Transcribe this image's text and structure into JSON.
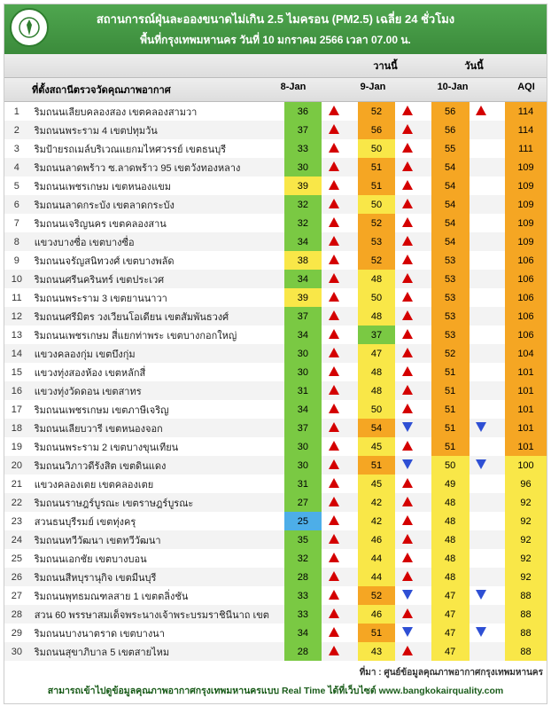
{
  "header": {
    "title1": "สถานการณ์ฝุ่นละอองขนาดไม่เกิน 2.5 ไมครอน (PM2.5) เฉลี่ย 24 ชั่วโมง",
    "title2": "พื้นที่กรุงเทพมหานคร วันที่ 10 มกราคม 2566 เวลา 07.00 น."
  },
  "columns": {
    "station": "ที่ตั้งสถานีตรวจวัดคุณภาพอากาศ",
    "yesterday_label": "วานนี้",
    "today_label": "วันนี้",
    "d1": "8-Jan",
    "d2": "9-Jan",
    "d3": "10-Jan",
    "aqi": "AQI"
  },
  "colors": {
    "green": "#7ac943",
    "yellow": "#f9e748",
    "orange": "#f5a623",
    "orange2": "#f5a623",
    "blue": "#4daee8"
  },
  "rows": [
    {
      "n": 1,
      "station": "ริมถนนเลียบคลองสอง เขตคลองสามวา",
      "v1": 36,
      "c1": "green",
      "a1": "up",
      "v2": 52,
      "c2": "orange",
      "a2": "up",
      "v3": 56,
      "c3": "orange",
      "a3": "up",
      "aqi": 114,
      "ac": "orange"
    },
    {
      "n": 2,
      "station": "ริมถนนพระราม 4 เขตปทุมวัน",
      "v1": 37,
      "c1": "green",
      "a1": "up",
      "v2": 56,
      "c2": "orange",
      "a2": "up",
      "v3": 56,
      "c3": "orange",
      "a3": "",
      "aqi": 114,
      "ac": "orange"
    },
    {
      "n": 3,
      "station": "ริมป้ายรถเมล์บริเวณแยกมไหศวรรย์ เขตธนบุรี",
      "v1": 33,
      "c1": "green",
      "a1": "up",
      "v2": 50,
      "c2": "yellow",
      "a2": "up",
      "v3": 55,
      "c3": "orange",
      "a3": "",
      "aqi": 111,
      "ac": "orange"
    },
    {
      "n": 4,
      "station": "ริมถนนลาดพร้าว ซ.ลาดพร้าว 95 เขตวังทองหลาง",
      "v1": 30,
      "c1": "green",
      "a1": "up",
      "v2": 51,
      "c2": "orange",
      "a2": "up",
      "v3": 54,
      "c3": "orange",
      "a3": "",
      "aqi": 109,
      "ac": "orange"
    },
    {
      "n": 5,
      "station": "ริมถนนเพชรเกษม เขตหนองแขม",
      "v1": 39,
      "c1": "yellow",
      "a1": "up",
      "v2": 51,
      "c2": "orange",
      "a2": "up",
      "v3": 54,
      "c3": "orange",
      "a3": "",
      "aqi": 109,
      "ac": "orange"
    },
    {
      "n": 6,
      "station": "ริมถนนลาดกระบัง เขตลาดกระบัง",
      "v1": 32,
      "c1": "green",
      "a1": "up",
      "v2": 50,
      "c2": "yellow",
      "a2": "up",
      "v3": 54,
      "c3": "orange",
      "a3": "",
      "aqi": 109,
      "ac": "orange"
    },
    {
      "n": 7,
      "station": "ริมถนนเจริญนคร เขตคลองสาน",
      "v1": 32,
      "c1": "green",
      "a1": "up",
      "v2": 52,
      "c2": "orange",
      "a2": "up",
      "v3": 54,
      "c3": "orange",
      "a3": "",
      "aqi": 109,
      "ac": "orange"
    },
    {
      "n": 8,
      "station": "แขวงบางซื่อ เขตบางซื่อ",
      "v1": 34,
      "c1": "green",
      "a1": "up",
      "v2": 53,
      "c2": "orange",
      "a2": "up",
      "v3": 54,
      "c3": "orange",
      "a3": "",
      "aqi": 109,
      "ac": "orange"
    },
    {
      "n": 9,
      "station": "ริมถนนจรัญสนิทวงศ์ เขตบางพลัด",
      "v1": 38,
      "c1": "yellow",
      "a1": "up",
      "v2": 52,
      "c2": "orange",
      "a2": "up",
      "v3": 53,
      "c3": "orange",
      "a3": "",
      "aqi": 106,
      "ac": "orange"
    },
    {
      "n": 10,
      "station": "ริมถนนศรีนครินทร์ เขตประเวศ",
      "v1": 34,
      "c1": "green",
      "a1": "up",
      "v2": 48,
      "c2": "yellow",
      "a2": "up",
      "v3": 53,
      "c3": "orange",
      "a3": "",
      "aqi": 106,
      "ac": "orange"
    },
    {
      "n": 11,
      "station": "ริมถนนพระราม 3 เขตยานนาวา",
      "v1": 39,
      "c1": "yellow",
      "a1": "up",
      "v2": 50,
      "c2": "yellow",
      "a2": "up",
      "v3": 53,
      "c3": "orange",
      "a3": "",
      "aqi": 106,
      "ac": "orange"
    },
    {
      "n": 12,
      "station": "ริมถนนศรีมิตร วงเวียนโอเดียน เขตสัมพันธวงศ์",
      "v1": 37,
      "c1": "green",
      "a1": "up",
      "v2": 48,
      "c2": "yellow",
      "a2": "up",
      "v3": 53,
      "c3": "orange",
      "a3": "",
      "aqi": 106,
      "ac": "orange"
    },
    {
      "n": 13,
      "station": "ริมถนนเพชรเกษม สี่แยกท่าพระ เขตบางกอกใหญ่",
      "v1": 34,
      "c1": "green",
      "a1": "up",
      "v2": 37,
      "c2": "green",
      "a2": "up",
      "v3": 53,
      "c3": "orange",
      "a3": "",
      "aqi": 106,
      "ac": "orange"
    },
    {
      "n": 14,
      "station": "แขวงคลองกุ่ม เขตบึงกุ่ม",
      "v1": 30,
      "c1": "green",
      "a1": "up",
      "v2": 47,
      "c2": "yellow",
      "a2": "up",
      "v3": 52,
      "c3": "orange",
      "a3": "",
      "aqi": 104,
      "ac": "orange"
    },
    {
      "n": 15,
      "station": "แขวงทุ่งสองห้อง เขตหลักสี่",
      "v1": 30,
      "c1": "green",
      "a1": "up",
      "v2": 48,
      "c2": "yellow",
      "a2": "up",
      "v3": 51,
      "c3": "orange",
      "a3": "",
      "aqi": 101,
      "ac": "orange"
    },
    {
      "n": 16,
      "station": "แขวงทุ่งวัดดอน เขตสาทร",
      "v1": 31,
      "c1": "green",
      "a1": "up",
      "v2": 48,
      "c2": "yellow",
      "a2": "up",
      "v3": 51,
      "c3": "orange",
      "a3": "",
      "aqi": 101,
      "ac": "orange"
    },
    {
      "n": 17,
      "station": "ริมถนนเพชรเกษม เขตภาษีเจริญ",
      "v1": 34,
      "c1": "green",
      "a1": "up",
      "v2": 50,
      "c2": "yellow",
      "a2": "up",
      "v3": 51,
      "c3": "orange",
      "a3": "",
      "aqi": 101,
      "ac": "orange"
    },
    {
      "n": 18,
      "station": "ริมถนนเลียบวารี เขตหนองจอก",
      "v1": 37,
      "c1": "green",
      "a1": "up",
      "v2": 54,
      "c2": "orange",
      "a2": "down",
      "v3": 51,
      "c3": "orange",
      "a3": "down",
      "aqi": 101,
      "ac": "orange"
    },
    {
      "n": 19,
      "station": "ริมถนนพระราม 2 เขตบางขุนเทียน",
      "v1": 30,
      "c1": "green",
      "a1": "up",
      "v2": 45,
      "c2": "yellow",
      "a2": "up",
      "v3": 51,
      "c3": "orange",
      "a3": "",
      "aqi": 101,
      "ac": "orange"
    },
    {
      "n": 20,
      "station": "ริมถนนวิภาวดีรังสิต เขตดินแดง",
      "v1": 30,
      "c1": "green",
      "a1": "up",
      "v2": 51,
      "c2": "orange",
      "a2": "down",
      "v3": 50,
      "c3": "yellow",
      "a3": "down",
      "aqi": 100,
      "ac": "yellow"
    },
    {
      "n": 21,
      "station": "แขวงคลองเตย เขตคลองเตย",
      "v1": 31,
      "c1": "green",
      "a1": "up",
      "v2": 45,
      "c2": "yellow",
      "a2": "up",
      "v3": 49,
      "c3": "yellow",
      "a3": "",
      "aqi": 96,
      "ac": "yellow"
    },
    {
      "n": 22,
      "station": "ริมถนนราษฎร์บูรณะ เขตราษฎร์บูรณะ",
      "v1": 27,
      "c1": "green",
      "a1": "up",
      "v2": 42,
      "c2": "yellow",
      "a2": "up",
      "v3": 48,
      "c3": "yellow",
      "a3": "",
      "aqi": 92,
      "ac": "yellow"
    },
    {
      "n": 23,
      "station": "สวนธนบุรีรมย์ เขตทุ่งครุ",
      "v1": 25,
      "c1": "blue",
      "a1": "up",
      "v2": 42,
      "c2": "yellow",
      "a2": "up",
      "v3": 48,
      "c3": "yellow",
      "a3": "",
      "aqi": 92,
      "ac": "yellow"
    },
    {
      "n": 24,
      "station": "ริมถนนทวีวัฒนา เขตทวีวัฒนา",
      "v1": 35,
      "c1": "green",
      "a1": "up",
      "v2": 46,
      "c2": "yellow",
      "a2": "up",
      "v3": 48,
      "c3": "yellow",
      "a3": "",
      "aqi": 92,
      "ac": "yellow"
    },
    {
      "n": 25,
      "station": "ริมถนนเอกชัย เขตบางบอน",
      "v1": 32,
      "c1": "green",
      "a1": "up",
      "v2": 44,
      "c2": "yellow",
      "a2": "up",
      "v3": 48,
      "c3": "yellow",
      "a3": "",
      "aqi": 92,
      "ac": "yellow"
    },
    {
      "n": 26,
      "station": "ริมถนนสีหบุรานุกิจ เขตมีนบุรี",
      "v1": 28,
      "c1": "green",
      "a1": "up",
      "v2": 44,
      "c2": "yellow",
      "a2": "up",
      "v3": 48,
      "c3": "yellow",
      "a3": "",
      "aqi": 92,
      "ac": "yellow"
    },
    {
      "n": 27,
      "station": "ริมถนนพุทธมณฑลสาย 1 เขตตลิ่งชัน",
      "v1": 33,
      "c1": "green",
      "a1": "up",
      "v2": 52,
      "c2": "orange",
      "a2": "down",
      "v3": 47,
      "c3": "yellow",
      "a3": "down",
      "aqi": 88,
      "ac": "yellow"
    },
    {
      "n": 28,
      "station": "สวน 60 พรรษาสมเด็จพระนางเจ้าพระบรมราชินีนาถ เขต",
      "v1": 33,
      "c1": "green",
      "a1": "up",
      "v2": 46,
      "c2": "yellow",
      "a2": "up",
      "v3": 47,
      "c3": "yellow",
      "a3": "",
      "aqi": 88,
      "ac": "yellow"
    },
    {
      "n": 29,
      "station": "ริมถนนบางนาตราด เขตบางนา",
      "v1": 34,
      "c1": "green",
      "a1": "up",
      "v2": 51,
      "c2": "orange",
      "a2": "down",
      "v3": 47,
      "c3": "yellow",
      "a3": "down",
      "aqi": 88,
      "ac": "yellow"
    },
    {
      "n": 30,
      "station": "ริมถนนสุขาภิบาล 5 เขตสายไหม",
      "v1": 28,
      "c1": "green",
      "a1": "up",
      "v2": 43,
      "c2": "yellow",
      "a2": "up",
      "v3": 47,
      "c3": "yellow",
      "a3": "",
      "aqi": 88,
      "ac": "yellow"
    }
  ],
  "footer": {
    "source": "ที่มา : ศูนย์ข้อมูลคุณภาพอากาศกรุงเทพมหานคร",
    "link": "สามารถเข้าไปดูข้อมูลคุณภาพอากาศกรุงเทพมหานครแบบ Real Time ได้ที่เว็บไซต์ www.bangkokairquality.com"
  }
}
